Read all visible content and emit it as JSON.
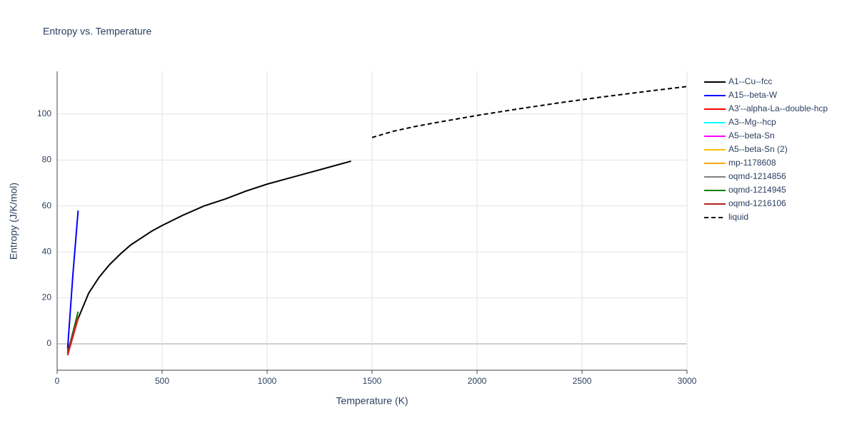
{
  "chart_data": {
    "type": "line",
    "title": "Entropy vs. Temperature",
    "x_label": "Temperature (K)",
    "y_label": "Entropy (J/K/mol)",
    "xlim": [
      0,
      3000
    ],
    "xticks": [
      0,
      500,
      1000,
      1500,
      2000,
      2500,
      3000
    ],
    "ylim": [
      -11.5,
      118.6
    ],
    "yticks": [
      0,
      20,
      40,
      60,
      80,
      100
    ],
    "grid": true,
    "series": [
      {
        "name": "A1--Cu--fcc",
        "color": "#000000",
        "x": [
          50,
          100,
          150,
          200,
          250,
          300,
          350,
          400,
          450,
          500,
          600,
          700,
          800,
          900,
          1000,
          1100,
          1200,
          1300,
          1400
        ],
        "values": [
          -3,
          11,
          22,
          29,
          34.5,
          39,
          43,
          46,
          49,
          51.5,
          56,
          60,
          63,
          66.5,
          69.5,
          72,
          74.5,
          77,
          79.5
        ]
      },
      {
        "name": "A15--beta-W",
        "color": "#0000ff",
        "x": [
          50,
          75,
          100
        ],
        "values": [
          -2,
          30,
          58
        ]
      },
      {
        "name": "A3'--alpha-La--double-hcp",
        "color": "#ff0000",
        "x": [
          50,
          100
        ],
        "values": [
          -5,
          11
        ]
      },
      {
        "name": "A3--Mg--hcp",
        "color": "#00ffff",
        "x": [
          50,
          100
        ],
        "values": [
          -4,
          12
        ]
      },
      {
        "name": "A5--beta-Sn",
        "color": "#ff00ff",
        "x": [
          50,
          100
        ],
        "values": [
          -4,
          12
        ]
      },
      {
        "name": "A5--beta-Sn (2)",
        "color": "#ffbf00",
        "x": [
          50,
          100
        ],
        "values": [
          -4,
          12
        ]
      },
      {
        "name": "mp-1178608",
        "color": "#ffa500",
        "x": [
          50,
          100
        ],
        "values": [
          -4,
          12
        ]
      },
      {
        "name": "oqmd-1214856",
        "color": "#808080",
        "x": [
          50,
          100
        ],
        "values": [
          -4,
          12
        ]
      },
      {
        "name": "oqmd-1214945",
        "color": "#008000",
        "x": [
          50,
          100
        ],
        "values": [
          -4,
          14
        ]
      },
      {
        "name": "oqmd-1216106",
        "color": "#b22222",
        "x": [
          50,
          100
        ],
        "values": [
          -4,
          12
        ]
      },
      {
        "name": "liquid",
        "color": "#000000",
        "dash": true,
        "x": [
          1500,
          1600,
          1700,
          1800,
          1900,
          2000,
          2200,
          2400,
          2600,
          2800,
          3000
        ],
        "values": [
          89.8,
          92.5,
          94.5,
          96.2,
          97.8,
          99.4,
          102.3,
          105,
          107.5,
          109.8,
          112
        ]
      }
    ]
  }
}
